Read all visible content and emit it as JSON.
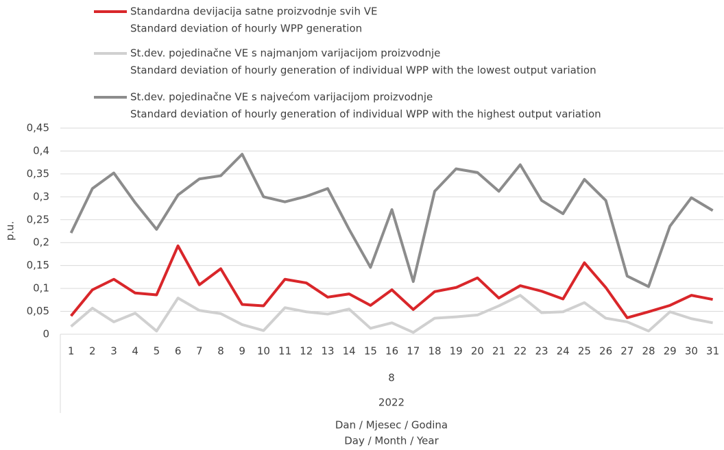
{
  "chart_data": {
    "type": "line",
    "categories": [
      "1",
      "2",
      "3",
      "4",
      "5",
      "6",
      "7",
      "8",
      "9",
      "10",
      "11",
      "12",
      "13",
      "14",
      "15",
      "16",
      "17",
      "18",
      "19",
      "20",
      "21",
      "22",
      "23",
      "24",
      "25",
      "26",
      "27",
      "28",
      "29",
      "30",
      "31"
    ],
    "month_label": "8",
    "year_label": "2022",
    "x_label": [
      "Dan / Mjesec / Godina",
      "Day / Month / Year"
    ],
    "y_label": "p.u.",
    "ylim": [
      0,
      0.45
    ],
    "yticks": [
      0,
      {
        "value": 0.05,
        "label": "0,05"
      },
      {
        "value": 0.1,
        "label": "0,1"
      },
      {
        "value": 0.15,
        "label": "0,15"
      },
      {
        "value": 0.2,
        "label": "0,2"
      },
      {
        "value": 0.25,
        "label": "0,25"
      },
      {
        "value": 0.3,
        "label": "0,3"
      },
      {
        "value": 0.35,
        "label": "0,35"
      },
      {
        "value": 0.4,
        "label": "0,4"
      },
      {
        "value": 0.45,
        "label": "0,45"
      }
    ],
    "grid": true,
    "series": [
      {
        "name": [
          "Standardna devijacija satne proizvodnje svih VE",
          "Standard deviation of hourly WPP generation"
        ],
        "color": "#d9262a",
        "values": [
          0.04,
          0.097,
          0.12,
          0.09,
          0.086,
          0.193,
          0.108,
          0.143,
          0.065,
          0.062,
          0.12,
          0.112,
          0.081,
          0.088,
          0.063,
          0.097,
          0.054,
          0.093,
          0.102,
          0.123,
          0.079,
          0.106,
          0.094,
          0.077,
          0.156,
          0.102,
          0.036,
          0.049,
          0.063,
          0.085,
          0.076
        ]
      },
      {
        "name": [
          "St.dev. pojedinačne VE s najmanjom varijacijom proizvodnje",
          "Standard deviation of hourly generation of individual WPP with the lowest output variation"
        ],
        "color": "#d0d0d0",
        "values": [
          0.017,
          0.057,
          0.027,
          0.046,
          0.007,
          0.079,
          0.052,
          0.045,
          0.021,
          0.008,
          0.058,
          0.049,
          0.044,
          0.055,
          0.013,
          0.025,
          0.004,
          0.035,
          0.038,
          0.042,
          0.062,
          0.085,
          0.047,
          0.049,
          0.069,
          0.035,
          0.027,
          0.007,
          0.049,
          0.034,
          0.025
        ]
      },
      {
        "name": [
          "St.dev. pojedinačne VE s najvećom varijacijom proizvodnje",
          "Standard deviation of hourly generation of individual WPP with the highest output variation"
        ],
        "color": "#8c8c8c",
        "values": [
          0.221,
          0.318,
          0.352,
          0.287,
          0.229,
          0.304,
          0.339,
          0.346,
          0.393,
          0.3,
          0.289,
          0.301,
          0.318,
          0.229,
          0.146,
          0.272,
          0.115,
          0.312,
          0.361,
          0.353,
          0.312,
          0.37,
          0.292,
          0.263,
          0.338,
          0.292,
          0.127,
          0.104,
          0.236,
          0.298,
          0.27
        ]
      }
    ]
  }
}
